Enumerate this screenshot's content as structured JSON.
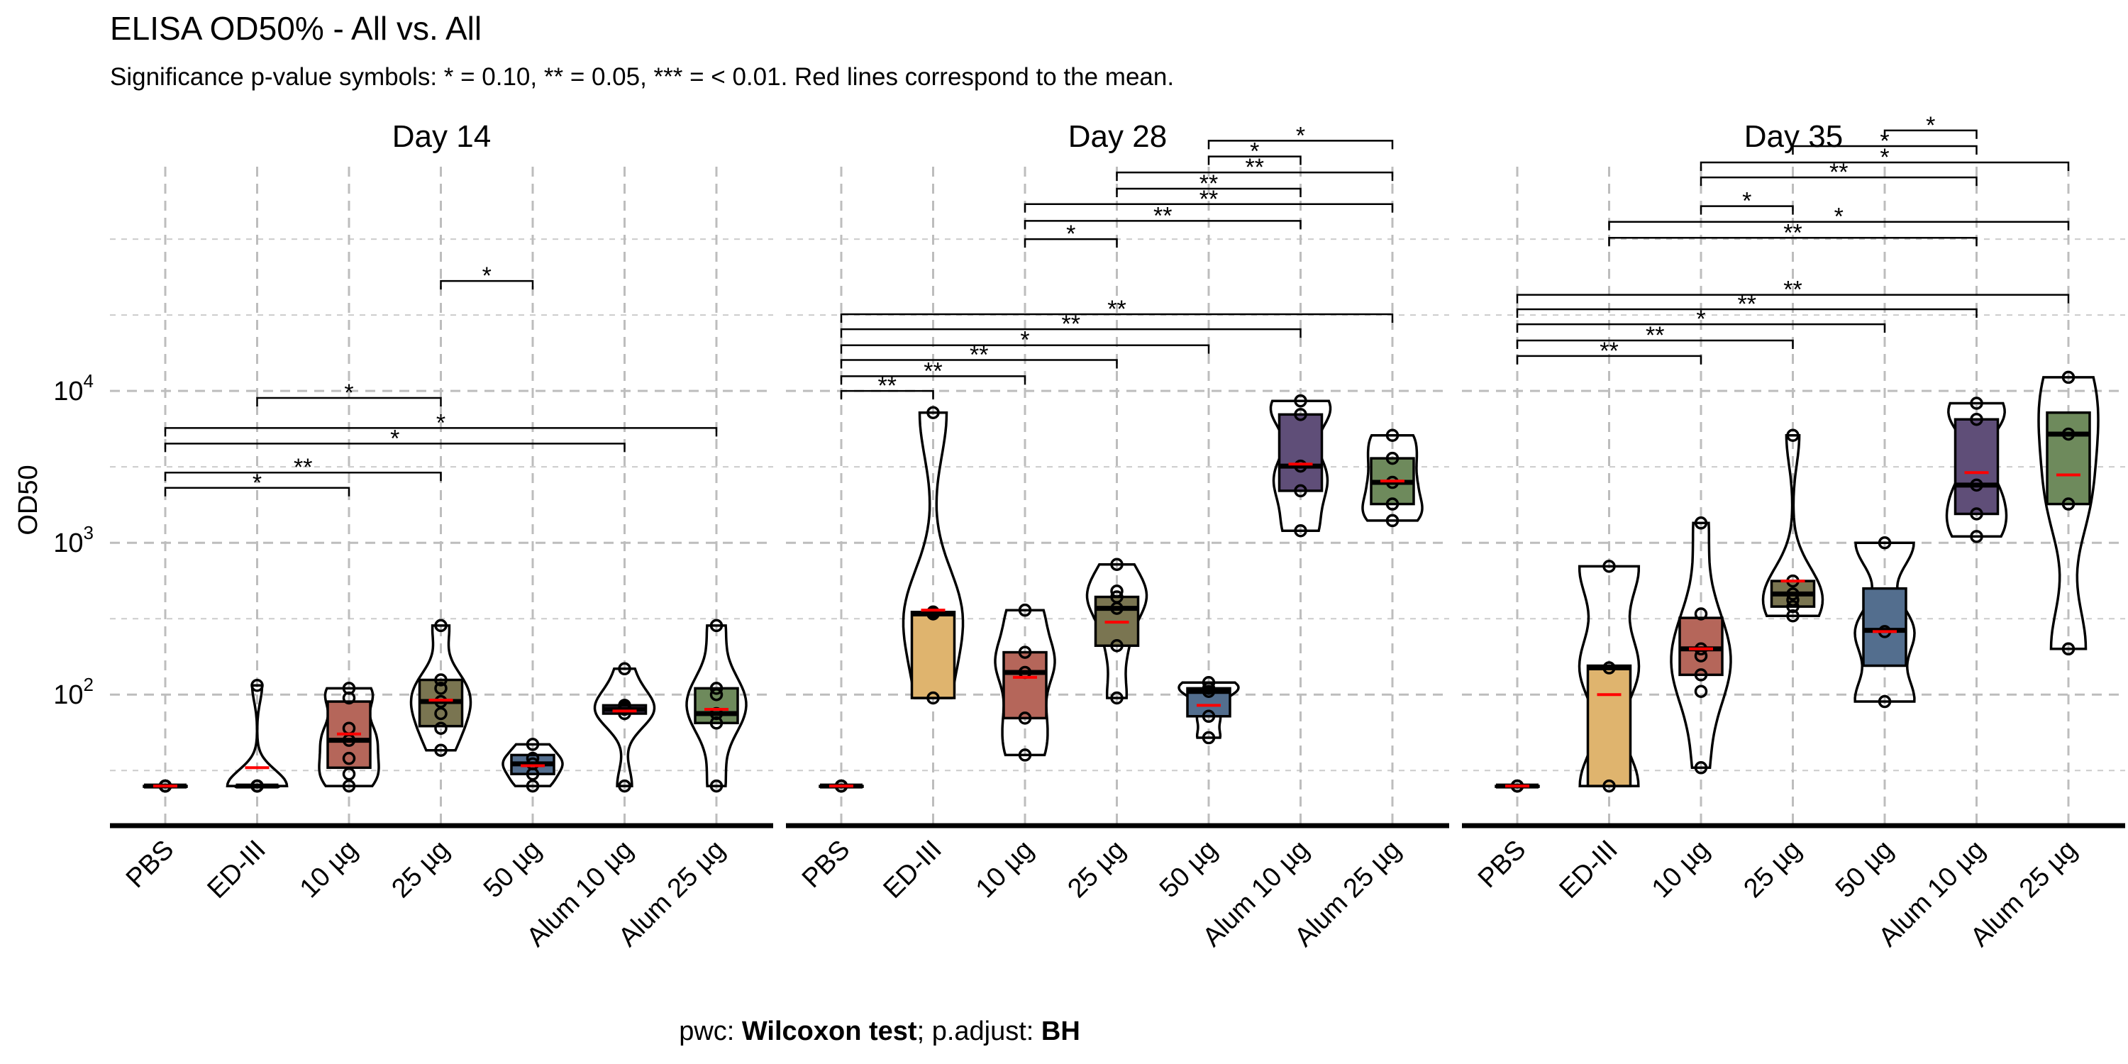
{
  "title": "ELISA OD50% - All vs. All",
  "subtitle": "Significance p-value symbols: * = 0.10, ** = 0.05, *** = < 0.01. Red lines correspond to the mean.",
  "caption": {
    "prefix": "pwc: ",
    "test": "Wilcoxon test",
    "middle": "; p.adjust: ",
    "method": "BH"
  },
  "colors": {
    "PBS": "#c8c8c8",
    "ED-III": "#dfb46e",
    "10 µg": "#b5665a",
    "25 µg": "#7a7551",
    "50 µg": "#536e8e",
    "Alum 10 µg": "#5f4e78",
    "Alum 25 µg": "#6e8a5c",
    "mean": "#ff0000"
  },
  "chart_data": {
    "type": "box-violin",
    "ylabel": "OD50",
    "yscale": "log10",
    "ylim": [
      14,
      300000
    ],
    "y_ticks": [
      {
        "value": 100,
        "base": "10",
        "exp": "2"
      },
      {
        "value": 1000,
        "base": "10",
        "exp": "3"
      },
      {
        "value": 10000,
        "base": "10",
        "exp": "4"
      }
    ],
    "categories": [
      "PBS",
      "ED-III",
      "10 µg",
      "25 µg",
      "50 µg",
      "Alum 10 µg",
      "Alum 25 µg"
    ],
    "panels": [
      {
        "title": "Day  14",
        "groups": [
          {
            "name": "PBS",
            "min": 25,
            "q1": 25,
            "median": 25,
            "q3": 25,
            "max": 25,
            "mean": 25,
            "points": [
              25,
              25,
              25,
              25,
              25,
              25,
              25
            ]
          },
          {
            "name": "ED-III",
            "min": 25,
            "q1": 25,
            "median": 25,
            "q3": 25,
            "max": 115,
            "mean": 33,
            "points": [
              25,
              25,
              25,
              25,
              25,
              25,
              115
            ]
          },
          {
            "name": "10 µg",
            "min": 25,
            "q1": 33,
            "median": 50,
            "q3": 90,
            "max": 110,
            "mean": 55,
            "points": [
              25,
              30,
              38,
              50,
              60,
              95,
              110
            ]
          },
          {
            "name": "25 µg",
            "min": 43,
            "q1": 62,
            "median": 90,
            "q3": 125,
            "max": 285,
            "mean": 92,
            "points": [
              43,
              60,
              75,
              90,
              110,
              125,
              285
            ]
          },
          {
            "name": "50 µg",
            "min": 25,
            "q1": 30,
            "median": 35,
            "q3": 40,
            "max": 47,
            "mean": 34,
            "points": [
              25,
              30,
              35,
              38,
              47
            ]
          },
          {
            "name": "Alum 10 µg",
            "min": 25,
            "q1": 75,
            "median": 80,
            "q3": 85,
            "max": 148,
            "mean": 78,
            "points": [
              25,
              75,
              80,
              82,
              85,
              148
            ]
          },
          {
            "name": "Alum 25 µg",
            "min": 25,
            "q1": 65,
            "median": 75,
            "q3": 110,
            "max": 285,
            "mean": 80,
            "points": [
              25,
              65,
              75,
              100,
              110,
              285
            ]
          }
        ],
        "comparisons": [
          {
            "from": "PBS",
            "to": "10 µg",
            "y": 2300,
            "label": "*"
          },
          {
            "from": "PBS",
            "to": "25 µg",
            "y": 2900,
            "label": "**"
          },
          {
            "from": "PBS",
            "to": "Alum 10 µg",
            "y": 4500,
            "label": "*"
          },
          {
            "from": "PBS",
            "to": "Alum 25 µg",
            "y": 5700,
            "label": "*"
          },
          {
            "from": "ED-III",
            "to": "25 µg",
            "y": 9000,
            "label": "*"
          },
          {
            "from": "25 µg",
            "to": "50 µg",
            "y": 53000,
            "label": "*"
          }
        ]
      },
      {
        "title": "Day  28",
        "groups": [
          {
            "name": "PBS",
            "min": 25,
            "q1": 25,
            "median": 25,
            "q3": 25,
            "max": 25,
            "mean": 25,
            "points": [
              25,
              25,
              25,
              25,
              25
            ]
          },
          {
            "name": "ED-III",
            "min": 95,
            "q1": 95,
            "median": 340,
            "q3": 350,
            "max": 7200,
            "mean": 360,
            "points": [
              95,
              340,
              350,
              7200
            ]
          },
          {
            "name": "10 µg",
            "min": 40,
            "q1": 70,
            "median": 140,
            "q3": 190,
            "max": 360,
            "mean": 130,
            "points": [
              40,
              70,
              140,
              190,
              360
            ]
          },
          {
            "name": "25 µg",
            "min": 95,
            "q1": 210,
            "median": 370,
            "q3": 440,
            "max": 720,
            "mean": 300,
            "points": [
              95,
              210,
              370,
              440,
              480,
              720
            ]
          },
          {
            "name": "50 µg",
            "min": 52,
            "q1": 72,
            "median": 105,
            "q3": 110,
            "max": 120,
            "mean": 85,
            "points": [
              52,
              72,
              105,
              110,
              120
            ]
          },
          {
            "name": "Alum 10 µg",
            "min": 1200,
            "q1": 2200,
            "median": 3200,
            "q3": 7000,
            "max": 8600,
            "mean": 3300,
            "points": [
              1200,
              2200,
              3200,
              7000,
              8600
            ]
          },
          {
            "name": "Alum 25 µg",
            "min": 1400,
            "q1": 1800,
            "median": 2500,
            "q3": 3600,
            "max": 5100,
            "mean": 2550,
            "points": [
              1400,
              1800,
              2500,
              3600,
              5100
            ]
          }
        ],
        "comparisons": [
          {
            "from": "PBS",
            "to": "ED-III",
            "y": 10000,
            "label": "**"
          },
          {
            "from": "PBS",
            "to": "10 µg",
            "y": 12500,
            "label": "**"
          },
          {
            "from": "PBS",
            "to": "25 µg",
            "y": 16000,
            "label": "**"
          },
          {
            "from": "PBS",
            "to": "50 µg",
            "y": 20000,
            "label": "*"
          },
          {
            "from": "PBS",
            "to": "Alum 10 µg",
            "y": 25500,
            "label": "**"
          },
          {
            "from": "PBS",
            "to": "Alum 25 µg",
            "y": 32000,
            "label": "**"
          },
          {
            "from": "10 µg",
            "to": "25 µg",
            "y": 100000,
            "label": "*"
          },
          {
            "from": "10 µg",
            "to": "Alum 10 µg",
            "y": 132000,
            "label": "**"
          },
          {
            "from": "10 µg",
            "to": "Alum 25 µg",
            "y": 170000,
            "label": "**"
          },
          {
            "from": "25 µg",
            "to": "Alum 10 µg",
            "y": 215000,
            "label": "**"
          },
          {
            "from": "25 µg",
            "to": "Alum 25 µg",
            "y": 275000,
            "label": "**"
          },
          {
            "from": "50 µg",
            "to": "Alum 10 µg",
            "y": 350000,
            "label": "*"
          },
          {
            "from": "50 µg",
            "to": "Alum 25 µg",
            "y": 445000,
            "label": "*"
          }
        ]
      },
      {
        "title": "Day  35",
        "groups": [
          {
            "name": "PBS",
            "min": 25,
            "q1": 25,
            "median": 25,
            "q3": 25,
            "max": 25,
            "mean": 25,
            "points": [
              25,
              25,
              25,
              25
            ]
          },
          {
            "name": "ED-III",
            "min": 25,
            "q1": 25,
            "median": 150,
            "q3": 155,
            "max": 700,
            "mean": 100,
            "points": [
              25,
              150,
              700
            ]
          },
          {
            "name": "10 µg",
            "min": 33,
            "q1": 135,
            "median": 200,
            "q3": 320,
            "max": 1350,
            "mean": 200,
            "points": [
              33,
              105,
              135,
              180,
              200,
              340,
              1350
            ]
          },
          {
            "name": "25 µg",
            "min": 330,
            "q1": 380,
            "median": 460,
            "q3": 560,
            "max": 5100,
            "mean": 560,
            "points": [
              330,
              380,
              420,
              460,
              560,
              5100
            ]
          },
          {
            "name": "50 µg",
            "min": 90,
            "q1": 155,
            "median": 265,
            "q3": 500,
            "max": 1000,
            "mean": 260,
            "points": [
              90,
              260,
              1000
            ]
          },
          {
            "name": "Alum 10 µg",
            "min": 1100,
            "q1": 1550,
            "median": 2400,
            "q3": 6500,
            "max": 8300,
            "mean": 2900,
            "points": [
              1100,
              1550,
              2400,
              6500,
              8300
            ]
          },
          {
            "name": "Alum 25 µg",
            "min": 200,
            "q1": 1800,
            "median": 5200,
            "q3": 7200,
            "max": 12300,
            "mean": 2800,
            "points": [
              200,
              1800,
              5200,
              12300
            ]
          }
        ],
        "comparisons": [
          {
            "from": "PBS",
            "to": "10 µg",
            "y": 17000,
            "label": "**"
          },
          {
            "from": "PBS",
            "to": "25 µg",
            "y": 21500,
            "label": "**"
          },
          {
            "from": "PBS",
            "to": "50 µg",
            "y": 27500,
            "label": "*"
          },
          {
            "from": "PBS",
            "to": "Alum 10 µg",
            "y": 34500,
            "label": "**"
          },
          {
            "from": "PBS",
            "to": "Alum 25 µg",
            "y": 43000,
            "label": "**"
          },
          {
            "from": "ED-III",
            "to": "Alum 10 µg",
            "y": 102000,
            "label": "**"
          },
          {
            "from": "ED-III",
            "to": "Alum 25 µg",
            "y": 130000,
            "label": "*"
          },
          {
            "from": "10 µg",
            "to": "25 µg",
            "y": 165000,
            "label": "*"
          },
          {
            "from": "10 µg",
            "to": "Alum 10 µg",
            "y": 255000,
            "label": "**"
          },
          {
            "from": "10 µg",
            "to": "Alum 25 µg",
            "y": 320000,
            "label": "*"
          },
          {
            "from": "25 µg",
            "to": "Alum 10 µg",
            "y": 410000,
            "label": "*"
          },
          {
            "from": "50 µg",
            "to": "Alum 10 µg",
            "y": 520000,
            "label": "*"
          }
        ]
      }
    ]
  }
}
